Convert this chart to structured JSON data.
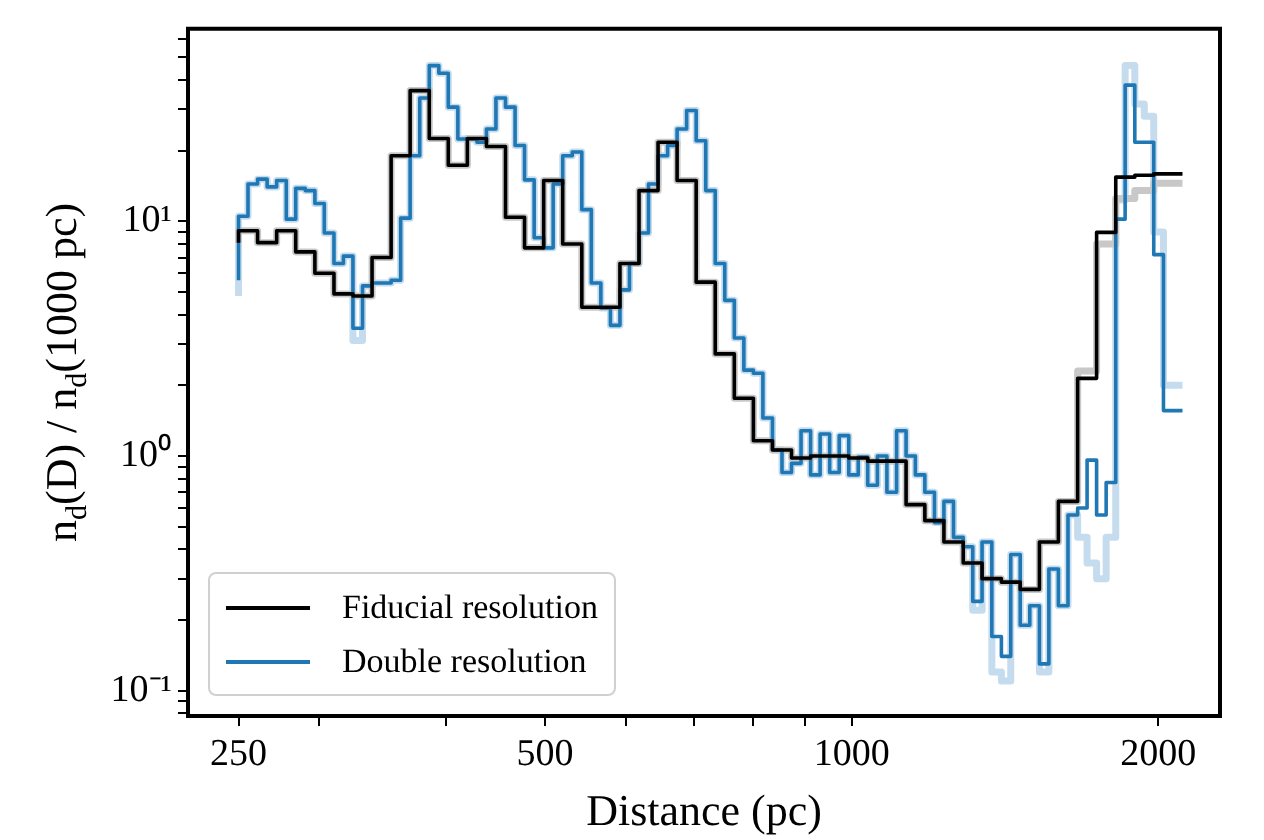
{
  "chart_data": {
    "type": "step",
    "xlabel": "Distance (pc)",
    "ylabel": "n$_{d}$(D) / n$_{d}$(1000 pc)",
    "log": "xy",
    "grid": false,
    "legend": "bottom left",
    "xlim": [
      223,
      2300
    ],
    "xticks": [
      250,
      {
        "value": 300,
        "label": null
      },
      {
        "value": 400,
        "label": null
      },
      500,
      {
        "value": 600,
        "label": null
      },
      {
        "value": 700,
        "label": null
      },
      {
        "value": 800,
        "label": null
      },
      {
        "value": 900,
        "label": null
      },
      1000,
      2000
    ],
    "ylim": [
      0.078,
      66
    ],
    "yticks": [
      {
        "value": 0.08,
        "label": null
      },
      {
        "value": 0.09,
        "label": null
      },
      {
        "value": 0.1,
        "label": "10⁻¹"
      },
      {
        "value": 0.2,
        "label": null
      },
      {
        "value": 0.3,
        "label": null
      },
      {
        "value": 0.4,
        "label": null
      },
      {
        "value": 0.5,
        "label": null
      },
      {
        "value": 0.6,
        "label": null
      },
      {
        "value": 0.7,
        "label": null
      },
      {
        "value": 0.8,
        "label": null
      },
      {
        "value": 0.9,
        "label": null
      },
      {
        "value": 1,
        "label": "10⁰"
      },
      {
        "value": 2,
        "label": null
      },
      {
        "value": 3,
        "label": null
      },
      {
        "value": 4,
        "label": null
      },
      {
        "value": 5,
        "label": null
      },
      {
        "value": 6,
        "label": null
      },
      {
        "value": 7,
        "label": null
      },
      {
        "value": 8,
        "label": null
      },
      {
        "value": 9,
        "label": null
      },
      {
        "value": 10,
        "label": "10¹"
      },
      {
        "value": 20,
        "label": null
      },
      {
        "value": 30,
        "label": null
      },
      {
        "value": 40,
        "label": null
      },
      {
        "value": 50,
        "label": null
      },
      {
        "value": 60,
        "label": null
      }
    ],
    "series": [
      {
        "color": "#c8c8c8",
        "x": [
          250,
          261.0,
          272.5,
          284.5,
          297.1,
          310.2,
          323.8,
          338.1,
          353.0,
          368.5,
          384.8,
          401.7,
          419.4,
          437.9,
          457.2,
          477.3,
          498.4,
          520.3,
          543.3,
          567.2,
          592.2,
          618.3,
          645.5,
          673.9,
          703.6,
          734.6,
          767.0,
          800.8,
          836.1,
          872.9,
          911.4,
          951.5,
          993.5,
          1037,
          1083,
          1131,
          1180,
          1232,
          1287,
          1343,
          1403,
          1464,
          1529,
          1596,
          1667,
          1740,
          1817,
          1897,
          1980,
          2068,
          2113
        ],
        "values": [
          8.1,
          9.1,
          8.1,
          9.1,
          7.4,
          6.0,
          4.9,
          4.8,
          7.0,
          19,
          36,
          22.5,
          17.3,
          22.5,
          20.8,
          10.4,
          7.7,
          14.9,
          8.0,
          4.3,
          4.3,
          6.6,
          13.5,
          21.7,
          14.9,
          5.5,
          2.72,
          1.76,
          1.16,
          1.06,
          0.98,
          1.0,
          1.0,
          0.98,
          0.95,
          0.95,
          0.62,
          0.53,
          0.43,
          0.35,
          0.3,
          0.29,
          0.27,
          0.43,
          0.64,
          2.3,
          8.0,
          12.5,
          13.5,
          14.5,
          14.5
        ]
      },
      {
        "color": "#c5dcee",
        "x": [
          250,
          255.4,
          261.0,
          266.7,
          272.5,
          278.5,
          284.5,
          290.7,
          297.1,
          303.5,
          310.2,
          316.9,
          323.8,
          330.9,
          338.1,
          345.5,
          353.0,
          360.7,
          368.5,
          376.6,
          384.8,
          393.2,
          401.7,
          410.5,
          419.4,
          428.6,
          437.9,
          447.4,
          457.2,
          467.2,
          477.3,
          487.8,
          498.4,
          509.2,
          520.3,
          531.7,
          543.3,
          555.1,
          567.2,
          579.6,
          592.2,
          605.1,
          618.3,
          631.7,
          645.5,
          659.6,
          673.9,
          688.6,
          703.6,
          719.0,
          734.6,
          750.6,
          767.0,
          783.7,
          800.8,
          818.2,
          836.1,
          854.3,
          872.9,
          891.9,
          911.4,
          931.2,
          951.5,
          972.3,
          993.5,
          1015,
          1037,
          1060,
          1083,
          1107,
          1131,
          1155,
          1180,
          1206,
          1232,
          1259,
          1287,
          1315,
          1343,
          1373,
          1403,
          1433,
          1464,
          1496,
          1529,
          1562,
          1596,
          1631,
          1667,
          1703,
          1740,
          1778,
          1817,
          1856,
          1897,
          1938,
          1980,
          2024,
          2068,
          2113
        ],
        "values": [
          4.8,
          10.5,
          14.4,
          15.1,
          14.0,
          14.9,
          10.2,
          13.8,
          13.5,
          11.9,
          8.9,
          6.6,
          7.1,
          3.1,
          5.3,
          5.45,
          5.45,
          5.6,
          10.3,
          19,
          33.5,
          46,
          42.7,
          30.6,
          22.4,
          22.4,
          21.7,
          24.7,
          33.5,
          30.6,
          21,
          15.0,
          8.5,
          7.7,
          14.4,
          19,
          19.7,
          11.2,
          5.45,
          4.27,
          3.6,
          5.1,
          6.6,
          8.9,
          14.4,
          19,
          21,
          24.7,
          29.6,
          22,
          13.5,
          6.6,
          4.6,
          3.18,
          2.32,
          2.25,
          1.45,
          1.06,
          0.85,
          0.93,
          1.28,
          0.83,
          1.24,
          0.85,
          1.22,
          0.83,
          0.99,
          0.75,
          1.0,
          0.7,
          1.28,
          1.0,
          0.83,
          0.7,
          0.52,
          0.64,
          0.45,
          0.41,
          0.22,
          0.43,
          0.12,
          0.11,
          0.38,
          0.19,
          0.23,
          0.12,
          0.33,
          0.23,
          0.56,
          0.45,
          0.35,
          0.3,
          0.45,
          12.3,
          46,
          31.6,
          28,
          9,
          2.0,
          2.0
        ]
      },
      {
        "name": "Fiducial resolution",
        "color": "#000000",
        "x": [
          250,
          261.0,
          272.5,
          284.5,
          297.1,
          310.2,
          323.8,
          338.1,
          353.0,
          368.5,
          384.8,
          401.7,
          419.4,
          437.9,
          457.2,
          477.3,
          498.4,
          520.3,
          543.3,
          567.2,
          592.2,
          618.3,
          645.5,
          673.9,
          703.6,
          734.6,
          767.0,
          800.8,
          836.1,
          872.9,
          911.4,
          951.5,
          993.5,
          1037,
          1083,
          1131,
          1180,
          1232,
          1287,
          1343,
          1403,
          1464,
          1529,
          1596,
          1667,
          1740,
          1817,
          1897,
          1980,
          2068,
          2113
        ],
        "values": [
          8.1,
          9.1,
          8.1,
          9.1,
          7.4,
          6.0,
          4.9,
          4.8,
          7.0,
          19,
          36,
          22.5,
          17.3,
          22.5,
          20.8,
          10.4,
          7.7,
          14.9,
          8.0,
          4.3,
          4.3,
          6.6,
          13.5,
          21.7,
          14.9,
          5.5,
          2.72,
          1.76,
          1.16,
          1.06,
          0.98,
          1.0,
          1.0,
          0.98,
          0.95,
          0.95,
          0.62,
          0.53,
          0.43,
          0.35,
          0.3,
          0.29,
          0.27,
          0.43,
          0.64,
          2.14,
          8.96,
          15.4,
          15.7,
          15.9,
          15.9
        ]
      },
      {
        "name": "Double resolution",
        "color": "#1f77b4",
        "x": [
          250,
          255.4,
          261.0,
          266.7,
          272.5,
          278.5,
          284.5,
          290.7,
          297.1,
          303.5,
          310.2,
          316.9,
          323.8,
          330.9,
          338.1,
          345.5,
          353.0,
          360.7,
          368.5,
          376.6,
          384.8,
          393.2,
          401.7,
          410.5,
          419.4,
          428.6,
          437.9,
          447.4,
          457.2,
          467.2,
          477.3,
          487.8,
          498.4,
          509.2,
          520.3,
          531.7,
          543.3,
          555.1,
          567.2,
          579.6,
          592.2,
          605.1,
          618.3,
          631.7,
          645.5,
          659.6,
          673.9,
          688.6,
          703.6,
          719.0,
          734.6,
          750.6,
          767.0,
          783.7,
          800.8,
          818.2,
          836.1,
          854.3,
          872.9,
          891.9,
          911.4,
          931.2,
          951.5,
          972.3,
          993.5,
          1015,
          1037,
          1060,
          1083,
          1107,
          1131,
          1155,
          1180,
          1206,
          1232,
          1259,
          1287,
          1315,
          1343,
          1373,
          1403,
          1433,
          1464,
          1496,
          1529,
          1562,
          1596,
          1631,
          1667,
          1703,
          1740,
          1778,
          1817,
          1856,
          1897,
          1938,
          1980,
          2024,
          2068,
          2113
        ],
        "values": [
          5.6,
          10.5,
          14.4,
          15.1,
          14.0,
          14.9,
          10.2,
          13.8,
          13.5,
          11.9,
          8.9,
          6.6,
          7.1,
          3.5,
          5.3,
          5.45,
          5.45,
          5.6,
          10.3,
          19,
          33.5,
          46,
          42.7,
          30.6,
          22.4,
          22.4,
          21.7,
          24.7,
          33.5,
          30.6,
          21,
          15.0,
          8.5,
          7.7,
          14.4,
          19,
          19.7,
          11.2,
          5.45,
          4.27,
          3.6,
          5.1,
          6.6,
          8.9,
          14.4,
          19,
          21,
          24.7,
          29.6,
          22,
          13.5,
          6.6,
          4.6,
          3.18,
          2.32,
          2.25,
          1.45,
          1.06,
          0.85,
          0.93,
          1.28,
          0.83,
          1.24,
          0.85,
          1.22,
          0.83,
          0.99,
          0.75,
          1.0,
          0.7,
          1.28,
          1.0,
          0.83,
          0.7,
          0.52,
          0.64,
          0.45,
          0.41,
          0.24,
          0.43,
          0.17,
          0.14,
          0.38,
          0.19,
          0.23,
          0.13,
          0.33,
          0.23,
          0.56,
          0.6,
          0.96,
          0.56,
          0.77,
          10.2,
          38,
          21.7,
          21.7,
          7.2,
          1.56,
          1.56
        ]
      }
    ]
  }
}
